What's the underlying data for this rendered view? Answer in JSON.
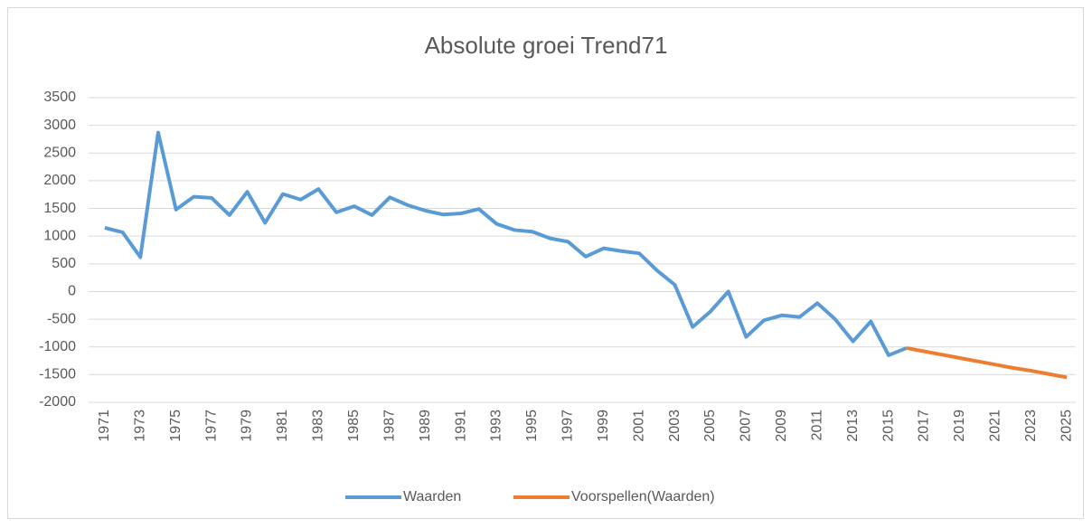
{
  "chart_data": {
    "type": "line",
    "title": "Absolute groei Trend71",
    "categories": [
      "1971",
      null,
      "1973",
      null,
      "1975",
      null,
      "1977",
      null,
      "1979",
      null,
      "1981",
      null,
      "1983",
      null,
      "1985",
      null,
      "1987",
      null,
      "1989",
      null,
      "1991",
      null,
      "1993",
      null,
      "1995",
      null,
      "1997",
      null,
      "1999",
      null,
      "2001",
      null,
      "2003",
      null,
      "2005",
      null,
      "2007",
      null,
      "2009",
      null,
      "2011",
      null,
      "2013",
      null,
      "2015",
      null,
      "2017",
      null,
      "2019",
      null,
      "2021",
      null,
      "2023",
      null,
      "2025"
    ],
    "series": [
      {
        "name": "Waarden",
        "color": "#5b9bd5",
        "values": [
          1150,
          1070,
          620,
          2870,
          1480,
          1710,
          1690,
          1380,
          1800,
          1240,
          1760,
          1660,
          1850,
          1430,
          1540,
          1380,
          1700,
          1560,
          1460,
          1390,
          1410,
          1490,
          1220,
          1110,
          1080,
          960,
          900,
          630,
          780,
          730,
          690,
          380,
          120,
          -640,
          -360,
          0,
          -820,
          -520,
          -430,
          -460,
          -210,
          -500,
          -900,
          -540,
          -1150,
          -1020,
          null,
          null,
          null,
          null,
          null,
          null,
          null,
          null,
          null
        ]
      },
      {
        "name": "Voorspellen(Waarden)",
        "color": "#ed7d31",
        "values": [
          null,
          null,
          null,
          null,
          null,
          null,
          null,
          null,
          null,
          null,
          null,
          null,
          null,
          null,
          null,
          null,
          null,
          null,
          null,
          null,
          null,
          null,
          null,
          null,
          null,
          null,
          null,
          null,
          null,
          null,
          null,
          null,
          null,
          null,
          null,
          null,
          null,
          null,
          null,
          null,
          null,
          null,
          null,
          null,
          null,
          -1020,
          -1080,
          -1140,
          -1200,
          -1260,
          -1320,
          -1380,
          -1430,
          -1490,
          -1550
        ]
      }
    ],
    "ylim": [
      -2000,
      3500
    ],
    "yticks": [
      -2000,
      -1500,
      -1000,
      -500,
      0,
      500,
      1000,
      1500,
      2000,
      2500,
      3000,
      3500
    ],
    "grid": true,
    "legend": "bottom"
  }
}
